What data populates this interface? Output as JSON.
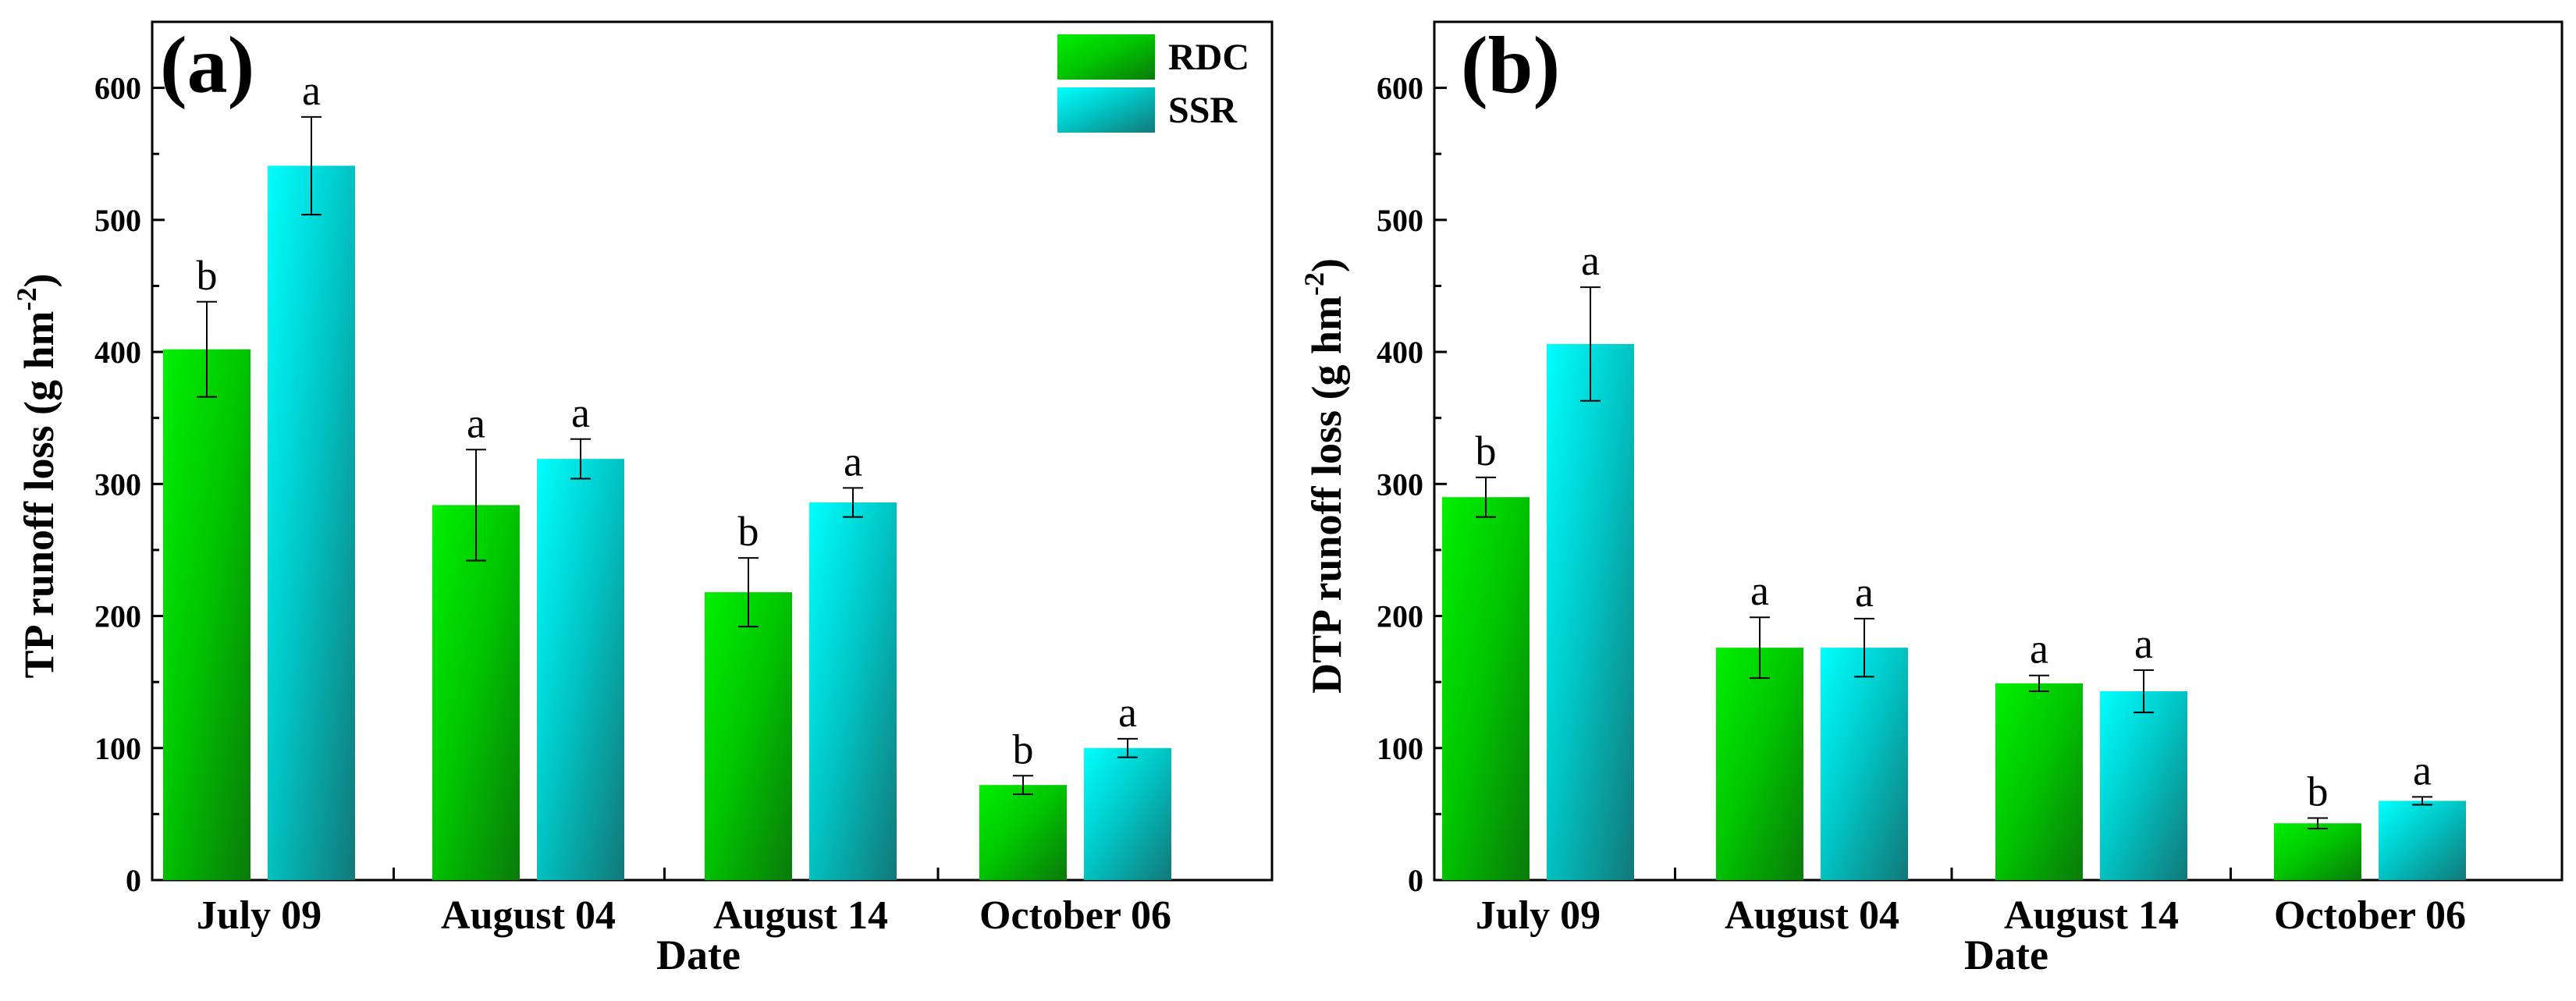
{
  "colors": {
    "RDC": {
      "light": "#00f000",
      "mid": "#00c800",
      "dark": "#0a7a0a"
    },
    "SSR": {
      "light": "#00ffff",
      "mid": "#00c8c8",
      "dark": "#127878"
    },
    "axis": "#000000",
    "background": "#ffffff"
  },
  "chart_data": [
    {
      "type": "bar",
      "panel_label": "(a)",
      "xlabel": "Date",
      "ylabel_main": "TP runoff loss (g hm",
      "ylabel_sup": "-2",
      "ylabel_close": ")",
      "ylim": [
        0,
        650
      ],
      "yticks": [
        "0",
        "100",
        "200",
        "300",
        "400",
        "500",
        "600"
      ],
      "categories": [
        "July 09",
        "August 04",
        "August 14",
        "October 06"
      ],
      "legend_position": "top-right",
      "series": [
        {
          "name": "RDC",
          "values": [
            402,
            284,
            218,
            72
          ],
          "errors": [
            36,
            42,
            26,
            7
          ],
          "letters": [
            "b",
            "a",
            "b",
            "b"
          ]
        },
        {
          "name": "SSR",
          "values": [
            541,
            319,
            286,
            100
          ],
          "errors": [
            37,
            15,
            11,
            7
          ],
          "letters": [
            "a",
            "a",
            "a",
            "a"
          ]
        }
      ]
    },
    {
      "type": "bar",
      "panel_label": "(b)",
      "xlabel": "Date",
      "ylabel_main": "DTP runoff loss (g hm",
      "ylabel_sup": "-2",
      "ylabel_close": ")",
      "ylim": [
        0,
        650
      ],
      "yticks": [
        "0",
        "100",
        "200",
        "300",
        "400",
        "500",
        "600"
      ],
      "categories": [
        "July 09",
        "August 04",
        "August 14",
        "October 06"
      ],
      "legend_position": "none",
      "series": [
        {
          "name": "RDC",
          "values": [
            290,
            176,
            149,
            43
          ],
          "errors": [
            15,
            23,
            6,
            4
          ],
          "letters": [
            "b",
            "a",
            "a",
            "b"
          ]
        },
        {
          "name": "SSR",
          "values": [
            406,
            176,
            143,
            60
          ],
          "errors": [
            43,
            22,
            16,
            3
          ],
          "letters": [
            "a",
            "a",
            "a",
            "a"
          ]
        }
      ]
    }
  ]
}
